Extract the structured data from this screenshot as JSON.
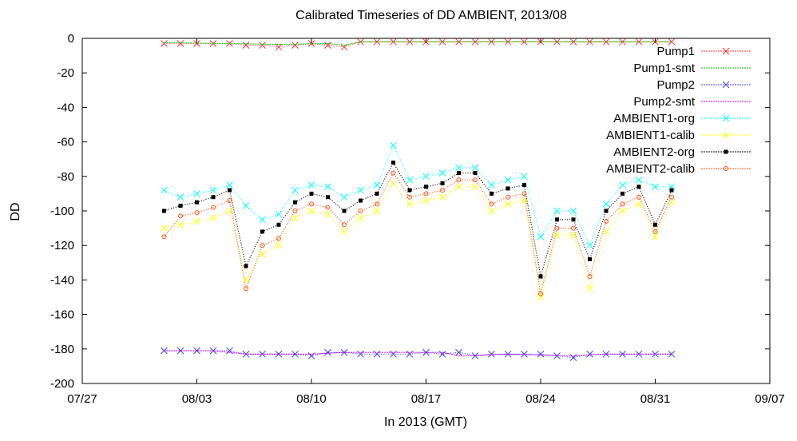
{
  "chart_data": {
    "type": "line",
    "title": "Calibrated Timeseries of DD AMBIENT, 2013/08",
    "xlabel": "In 2013 (GMT)",
    "ylabel": "DD",
    "xlim": [
      "2013-07-27",
      "2013-09-07"
    ],
    "ylim": [
      -200,
      0
    ],
    "xticks": [
      {
        "date": "2013-07-27",
        "label": "07/27"
      },
      {
        "date": "2013-08-03",
        "label": "08/03"
      },
      {
        "date": "2013-08-10",
        "label": "08/10"
      },
      {
        "date": "2013-08-17",
        "label": "08/17"
      },
      {
        "date": "2013-08-24",
        "label": "08/24"
      },
      {
        "date": "2013-08-31",
        "label": "08/31"
      },
      {
        "date": "2013-09-07",
        "label": "09/07"
      }
    ],
    "yticks": [
      0,
      -20,
      -40,
      -60,
      -80,
      -100,
      -120,
      -140,
      -160,
      -180,
      -200
    ],
    "legend_position": "top-right",
    "series": [
      {
        "name": "Pump1",
        "color": "#ff3030",
        "marker": "x",
        "x": [
          "2013-08-01",
          "2013-08-02",
          "2013-08-03",
          "2013-08-04",
          "2013-08-05",
          "2013-08-06",
          "2013-08-07",
          "2013-08-08",
          "2013-08-09",
          "2013-08-10",
          "2013-08-11",
          "2013-08-12",
          "2013-08-13",
          "2013-08-14",
          "2013-08-15",
          "2013-08-16",
          "2013-08-17",
          "2013-08-18",
          "2013-08-19",
          "2013-08-20",
          "2013-08-21",
          "2013-08-22",
          "2013-08-23",
          "2013-08-24",
          "2013-08-25",
          "2013-08-26",
          "2013-08-27",
          "2013-08-28",
          "2013-08-29",
          "2013-08-30",
          "2013-08-31",
          "2013-09-01"
        ],
        "y": [
          -3,
          -3,
          -3,
          -3,
          -3,
          -4,
          -4,
          -5,
          -4,
          -3,
          -4,
          -5,
          -2,
          -2,
          -2,
          -2,
          -2,
          -2,
          -2,
          -2,
          -2,
          -2,
          -2,
          -2,
          -2,
          -2,
          -2,
          -2,
          -2,
          -2,
          -2,
          -2
        ]
      },
      {
        "name": "Pump1-smt",
        "color": "#00c000",
        "marker": "none",
        "x": [
          "2013-08-01",
          "2013-08-05",
          "2013-08-08",
          "2013-08-11",
          "2013-08-12",
          "2013-08-13",
          "2013-08-20",
          "2013-08-28",
          "2013-09-01"
        ],
        "y": [
          -2.5,
          -3,
          -3.5,
          -3,
          -4,
          -2,
          -2,
          -2,
          -2
        ]
      },
      {
        "name": "Pump2",
        "color": "#4040ff",
        "marker": "x",
        "x": [
          "2013-08-01",
          "2013-08-02",
          "2013-08-03",
          "2013-08-04",
          "2013-08-05",
          "2013-08-06",
          "2013-08-07",
          "2013-08-08",
          "2013-08-09",
          "2013-08-10",
          "2013-08-11",
          "2013-08-12",
          "2013-08-13",
          "2013-08-14",
          "2013-08-15",
          "2013-08-16",
          "2013-08-17",
          "2013-08-18",
          "2013-08-19",
          "2013-08-20",
          "2013-08-21",
          "2013-08-22",
          "2013-08-23",
          "2013-08-24",
          "2013-08-25",
          "2013-08-26",
          "2013-08-27",
          "2013-08-28",
          "2013-08-29",
          "2013-08-30",
          "2013-08-31",
          "2013-09-01"
        ],
        "y": [
          -181,
          -181,
          -181,
          -181,
          -181,
          -183,
          -183,
          -183,
          -183,
          -184,
          -182,
          -182,
          -183,
          -183,
          -183,
          -183,
          -182,
          -183,
          -182,
          -184,
          -183,
          -183,
          -183,
          -183,
          -184,
          -185,
          -183,
          -183,
          -183,
          -183,
          -183,
          -183
        ]
      },
      {
        "name": "Pump2-smt",
        "color": "#c000ff",
        "marker": "none",
        "x": [
          "2013-08-01",
          "2013-08-04",
          "2013-08-06",
          "2013-08-10",
          "2013-08-12",
          "2013-08-18",
          "2013-08-19",
          "2013-08-22",
          "2013-08-26",
          "2013-08-28",
          "2013-09-01"
        ],
        "y": [
          -181,
          -181,
          -183,
          -183,
          -182,
          -182,
          -184,
          -183,
          -184,
          -183,
          -183
        ]
      },
      {
        "name": "AMBIENT1-org",
        "color": "#00ffff",
        "marker": "x",
        "x": [
          "2013-08-01",
          "2013-08-02",
          "2013-08-03",
          "2013-08-04",
          "2013-08-05",
          "2013-08-06",
          "2013-08-07",
          "2013-08-08",
          "2013-08-09",
          "2013-08-10",
          "2013-08-11",
          "2013-08-12",
          "2013-08-13",
          "2013-08-14",
          "2013-08-15",
          "2013-08-16",
          "2013-08-17",
          "2013-08-18",
          "2013-08-19",
          "2013-08-20",
          "2013-08-21",
          "2013-08-22",
          "2013-08-23",
          "2013-08-24",
          "2013-08-25",
          "2013-08-26",
          "2013-08-27",
          "2013-08-28",
          "2013-08-29",
          "2013-08-30",
          "2013-08-31",
          "2013-09-01"
        ],
        "y": [
          -88,
          -92,
          -90,
          -88,
          -85,
          -97,
          -105,
          -102,
          -88,
          -85,
          -86,
          -92,
          -88,
          -85,
          -62,
          -82,
          -80,
          -78,
          -75,
          -75,
          -85,
          -82,
          -80,
          -115,
          -100,
          -100,
          -120,
          -96,
          -85,
          -82,
          -86,
          -86
        ]
      },
      {
        "name": "AMBIENT1-calib",
        "color": "#ffff00",
        "marker": "x",
        "x": [
          "2013-08-01",
          "2013-08-02",
          "2013-08-03",
          "2013-08-04",
          "2013-08-05",
          "2013-08-06",
          "2013-08-07",
          "2013-08-08",
          "2013-08-09",
          "2013-08-10",
          "2013-08-11",
          "2013-08-12",
          "2013-08-13",
          "2013-08-14",
          "2013-08-15",
          "2013-08-16",
          "2013-08-17",
          "2013-08-18",
          "2013-08-19",
          "2013-08-20",
          "2013-08-21",
          "2013-08-22",
          "2013-08-23",
          "2013-08-24",
          "2013-08-25",
          "2013-08-26",
          "2013-08-27",
          "2013-08-28",
          "2013-08-29",
          "2013-08-30",
          "2013-08-31",
          "2013-09-01"
        ],
        "y": [
          -110,
          -108,
          -106,
          -104,
          -100,
          -140,
          -125,
          -120,
          -104,
          -100,
          -102,
          -112,
          -104,
          -100,
          -84,
          -96,
          -94,
          -92,
          -86,
          -86,
          -100,
          -96,
          -94,
          -150,
          -114,
          -114,
          -145,
          -112,
          -100,
          -96,
          -115,
          -95
        ]
      },
      {
        "name": "AMBIENT2-org",
        "color": "#000000",
        "marker": "square",
        "x": [
          "2013-08-01",
          "2013-08-02",
          "2013-08-03",
          "2013-08-04",
          "2013-08-05",
          "2013-08-06",
          "2013-08-07",
          "2013-08-08",
          "2013-08-09",
          "2013-08-10",
          "2013-08-11",
          "2013-08-12",
          "2013-08-13",
          "2013-08-14",
          "2013-08-15",
          "2013-08-16",
          "2013-08-17",
          "2013-08-18",
          "2013-08-19",
          "2013-08-20",
          "2013-08-21",
          "2013-08-22",
          "2013-08-23",
          "2013-08-24",
          "2013-08-25",
          "2013-08-26",
          "2013-08-27",
          "2013-08-28",
          "2013-08-29",
          "2013-08-30",
          "2013-08-31",
          "2013-09-01"
        ],
        "y": [
          -100,
          -97,
          -95,
          -92,
          -88,
          -132,
          -112,
          -108,
          -95,
          -90,
          -92,
          -100,
          -94,
          -90,
          -72,
          -88,
          -86,
          -84,
          -78,
          -78,
          -90,
          -87,
          -85,
          -138,
          -105,
          -105,
          -128,
          -100,
          -90,
          -86,
          -108,
          -88
        ]
      },
      {
        "name": "AMBIENT2-calib",
        "color": "#ff5010",
        "marker": "circle",
        "x": [
          "2013-08-01",
          "2013-08-02",
          "2013-08-03",
          "2013-08-04",
          "2013-08-05",
          "2013-08-06",
          "2013-08-07",
          "2013-08-08",
          "2013-08-09",
          "2013-08-10",
          "2013-08-11",
          "2013-08-12",
          "2013-08-13",
          "2013-08-14",
          "2013-08-15",
          "2013-08-16",
          "2013-08-17",
          "2013-08-18",
          "2013-08-19",
          "2013-08-20",
          "2013-08-21",
          "2013-08-22",
          "2013-08-23",
          "2013-08-24",
          "2013-08-25",
          "2013-08-26",
          "2013-08-27",
          "2013-08-28",
          "2013-08-29",
          "2013-08-30",
          "2013-08-31",
          "2013-09-01"
        ],
        "y": [
          -115,
          -103,
          -101,
          -98,
          -94,
          -145,
          -120,
          -116,
          -100,
          -96,
          -98,
          -108,
          -100,
          -96,
          -78,
          -92,
          -90,
          -88,
          -82,
          -82,
          -96,
          -92,
          -90,
          -148,
          -110,
          -110,
          -138,
          -106,
          -96,
          -92,
          -112,
          -92
        ]
      }
    ]
  }
}
